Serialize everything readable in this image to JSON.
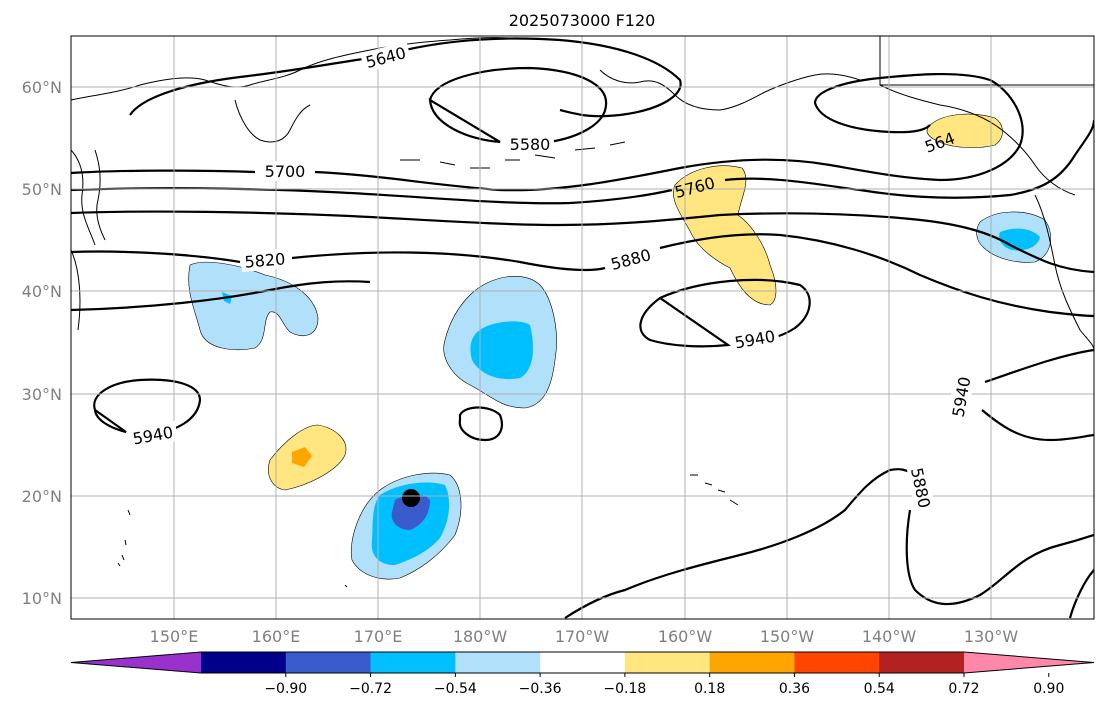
{
  "title": "2025073000 F120",
  "map": {
    "lon_ticks": [
      "150°E",
      "160°E",
      "170°E",
      "180°W",
      "170°W",
      "160°W",
      "150°W",
      "140°W",
      "130°W"
    ],
    "lat_ticks": [
      "60°N",
      "50°N",
      "40°N",
      "30°N",
      "20°N",
      "10°N"
    ],
    "contour_labels": [
      "5640",
      "5580",
      "5700",
      "5760",
      "5820",
      "5880",
      "5940",
      "5940",
      "5940",
      "5880",
      "564"
    ],
    "marker": "storm-center-dot"
  },
  "colorbar": {
    "tick_labels": [
      "−0.90",
      "−0.72",
      "−0.54",
      "−0.36",
      "−0.18",
      "0.18",
      "0.36",
      "0.54",
      "0.72",
      "0.90"
    ],
    "colors": [
      "#9932cc",
      "#00008b",
      "#3a5bcc",
      "#00bfff",
      "#b0e0fa",
      "#ffffff",
      "#ffe680",
      "#ffa500",
      "#ff4500",
      "#b22222",
      "#ff88aa"
    ]
  }
}
